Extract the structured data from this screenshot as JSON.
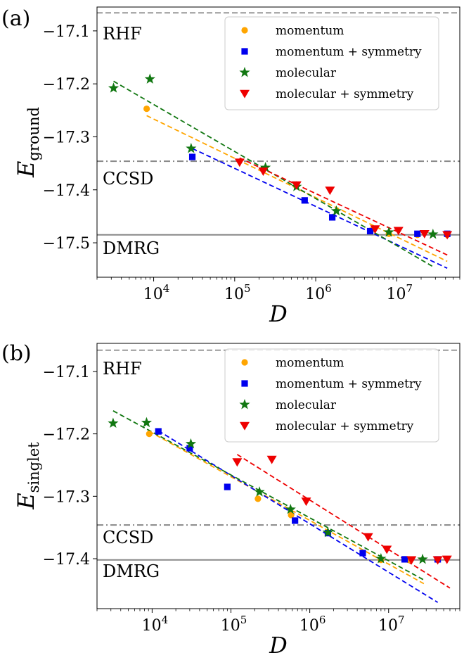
{
  "chart_data": [
    {
      "type": "scatter",
      "panel_label": "(a)",
      "xlabel": "D",
      "ylabel": "E",
      "ylabel_sub": "ground",
      "xscale": "log",
      "xlim": [
        2000,
        60000000
      ],
      "ylim": [
        -17.565,
        -17.055
      ],
      "yticks": [
        -17.1,
        -17.2,
        -17.3,
        -17.4,
        -17.5
      ],
      "ytick_labels": [
        "−17.1",
        "−17.2",
        "−17.3",
        "−17.4",
        "−17.5"
      ],
      "xticks": [
        10000,
        100000,
        1000000,
        10000000
      ],
      "xtick_labels": [
        "10",
        "10",
        "10",
        "10"
      ],
      "xtick_exponents": [
        "4",
        "5",
        "6",
        "7"
      ],
      "reference_lines": [
        {
          "name": "RHF",
          "label": "RHF",
          "y": -17.066,
          "style": "dashed",
          "color": "#999999"
        },
        {
          "name": "CCSD",
          "label": "CCSD",
          "y": -17.346,
          "style": "dashdot",
          "color": "#888888"
        },
        {
          "name": "DMRG",
          "label": "DMRG",
          "y": -17.485,
          "style": "solid",
          "color": "#888888"
        }
      ],
      "legend_position": "top-right",
      "series": [
        {
          "name": "momentum",
          "label": "momentum",
          "color": "#ffa500",
          "marker": "circle",
          "x": [
            8200,
            4800000,
            8000000,
            18000000,
            42000000
          ],
          "y": [
            -17.247,
            -17.477,
            -17.483,
            -17.485,
            -17.485
          ],
          "fit": {
            "x": [
              8200,
              42000000
            ],
            "y": [
              -17.26,
              -17.535
            ]
          }
        },
        {
          "name": "momentum-symmetry",
          "label": "momentum + symmetry",
          "color": "#0000ee",
          "marker": "square",
          "x": [
            30000,
            730000,
            1600000,
            4700000,
            18000000,
            42000000
          ],
          "y": [
            -17.338,
            -17.42,
            -17.452,
            -17.478,
            -17.483,
            -17.483
          ],
          "fit": {
            "x": [
              30000,
              42000000
            ],
            "y": [
              -17.322,
              -17.548
            ]
          }
        },
        {
          "name": "molecular",
          "label": "molecular",
          "color": "#117711",
          "marker": "star",
          "x": [
            3200,
            9000,
            29000,
            240000,
            580000,
            1800000,
            8000000,
            28000000
          ],
          "y": [
            -17.208,
            -17.191,
            -17.322,
            -17.358,
            -17.394,
            -17.44,
            -17.48,
            -17.484
          ],
          "fit": {
            "x": [
              3200,
              28000000
            ],
            "y": [
              -17.195,
              -17.545
            ]
          }
        },
        {
          "name": "molecular-symmetry",
          "label": "molecular + symmetry",
          "color": "#ee0000",
          "marker": "triangle-down",
          "x": [
            115000,
            225000,
            580000,
            1500000,
            5400000,
            10500000,
            22000000,
            42000000
          ],
          "y": [
            -17.348,
            -17.365,
            -17.391,
            -17.401,
            -17.474,
            -17.477,
            -17.483,
            -17.485
          ],
          "fit": {
            "x": [
              115000,
              42000000
            ],
            "y": [
              -17.34,
              -17.523
            ]
          }
        }
      ]
    },
    {
      "type": "scatter",
      "panel_label": "(b)",
      "xlabel": "D",
      "ylabel": "E",
      "ylabel_sub": "singlet",
      "xscale": "log",
      "xlim": [
        2000,
        80000000
      ],
      "ylim": [
        -17.48,
        -17.055
      ],
      "yticks": [
        -17.1,
        -17.2,
        -17.3,
        -17.4
      ],
      "ytick_labels": [
        "−17.1",
        "−17.2",
        "−17.3",
        "−17.4"
      ],
      "xticks": [
        10000,
        100000,
        1000000,
        10000000
      ],
      "xtick_labels": [
        "10",
        "10",
        "10",
        "10"
      ],
      "xtick_exponents": [
        "4",
        "5",
        "6",
        "7"
      ],
      "reference_lines": [
        {
          "name": "RHF",
          "label": "RHF",
          "y": -17.066,
          "style": "dashed",
          "color": "#999999"
        },
        {
          "name": "CCSD",
          "label": "CCSD",
          "y": -17.346,
          "style": "dashdot",
          "color": "#888888"
        },
        {
          "name": "DMRG",
          "label": "DMRG",
          "y": -17.402,
          "style": "solid",
          "color": "#888888"
        }
      ],
      "legend_position": "top-right",
      "series": [
        {
          "name": "momentum",
          "label": "momentum",
          "color": "#ffa500",
          "marker": "circle",
          "x": [
            9200,
            220000,
            580000,
            8000000,
            18000000,
            42000000
          ],
          "y": [
            -17.2,
            -17.304,
            -17.33,
            -17.402,
            -17.402,
            -17.402
          ],
          "fit": {
            "x": [
              9200,
              28000000
            ],
            "y": [
              -17.196,
              -17.44
            ]
          }
        },
        {
          "name": "momentum-symmetry",
          "label": "momentum + symmetry",
          "color": "#0000ee",
          "marker": "square",
          "x": [
            12000,
            30000,
            90000,
            650000,
            1700000,
            4700000,
            16000000,
            42000000
          ],
          "y": [
            -17.196,
            -17.223,
            -17.285,
            -17.339,
            -17.359,
            -17.391,
            -17.401,
            -17.401
          ],
          "fit": {
            "x": [
              12000,
              42000000
            ],
            "y": [
              -17.195,
              -17.47
            ]
          }
        },
        {
          "name": "molecular",
          "label": "molecular",
          "color": "#117711",
          "marker": "star",
          "x": [
            3200,
            8500,
            31000,
            230000,
            570000,
            1700000,
            8000000,
            27000000
          ],
          "y": [
            -17.183,
            -17.182,
            -17.216,
            -17.293,
            -17.321,
            -17.358,
            -17.4,
            -17.401
          ],
          "fit": {
            "x": [
              3200,
              28000000
            ],
            "y": [
              -17.163,
              -17.434
            ]
          }
        },
        {
          "name": "molecular-symmetry",
          "label": "molecular + symmetry",
          "color": "#ee0000",
          "marker": "triangle-down",
          "x": [
            120000,
            330000,
            900000,
            5500000,
            9500000,
            19500000,
            42000000,
            55000000
          ],
          "y": [
            -17.245,
            -17.241,
            -17.308,
            -17.365,
            -17.385,
            -17.402,
            -17.402,
            -17.401
          ],
          "fit": {
            "x": [
              120000,
              60000000
            ],
            "y": [
              -17.233,
              -17.447
            ]
          }
        }
      ]
    }
  ]
}
